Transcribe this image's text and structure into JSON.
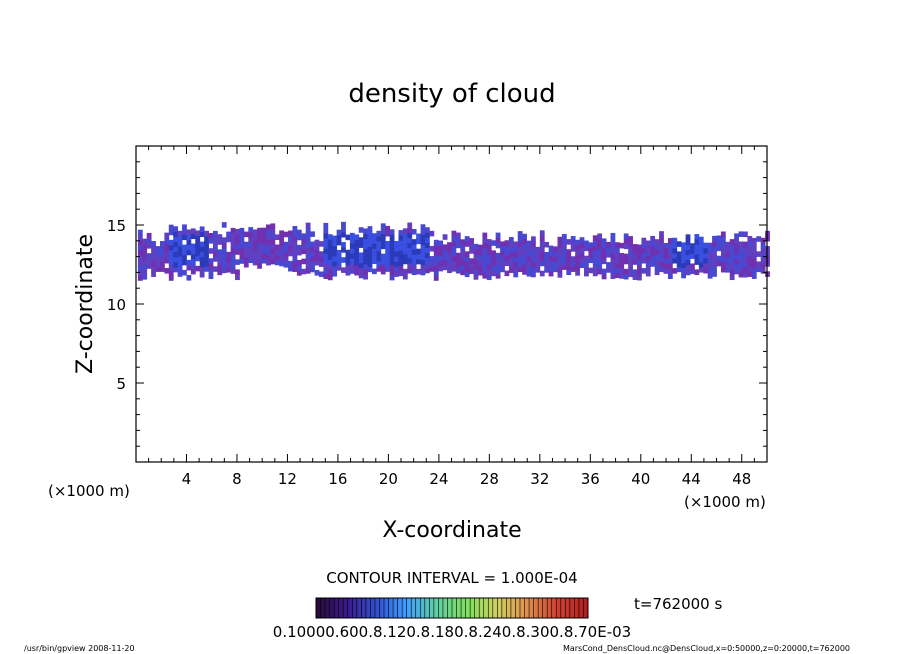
{
  "chart_data": {
    "type": "heatmap",
    "title": "density of cloud",
    "xlabel": "X-coordinate",
    "ylabel": "Z-coordinate",
    "x_unit": "(×1000 m)",
    "y_unit": "(×1000 m)",
    "xlim": [
      0,
      50
    ],
    "ylim": [
      0,
      20
    ],
    "x_ticks": [
      "4",
      "8",
      "12",
      "16",
      "20",
      "24",
      "28",
      "32",
      "36",
      "40",
      "44",
      "48"
    ],
    "y_ticks": [
      "5",
      "10",
      "15"
    ],
    "contour_interval": "CONTOUR INTERVAL = 1.000E-04",
    "time": "t=762000 s",
    "colorbar_labels": "0.10000.600.8.120.8.180.8.240.8.300.8.70E-03",
    "colorbar_colors": [
      "#2a0a3a",
      "#3a1a8a",
      "#3050d0",
      "#40a0ff",
      "#60d0a0",
      "#80e060",
      "#d0d060",
      "#e09050",
      "#d04030",
      "#b02020"
    ],
    "cloud_band": {
      "z_low": 11.5,
      "z_high": 15.0,
      "dense_regions_x": [
        [
          2.5,
          5.5
        ],
        [
          14.5,
          23.0
        ],
        [
          42.5,
          45.0
        ]
      ],
      "colors": [
        "#7030b0",
        "#6040c0",
        "#4848d0",
        "#3a5ae0",
        "#2a3ab8",
        "#8a3ac0"
      ]
    },
    "footer_left": "/usr/bin/gpview   2008-11-20",
    "footer_right": "MarsCond_DensCloud.nc@DensCloud,x=0:50000,z=0:20000,t=762000"
  }
}
